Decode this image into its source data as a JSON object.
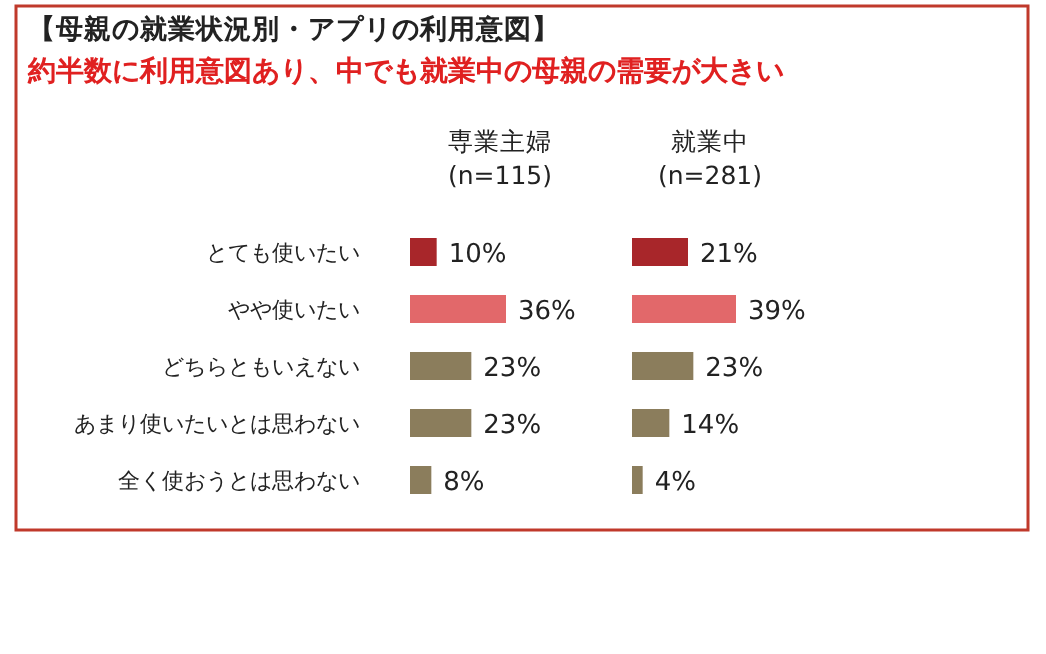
{
  "chart_data": [
    {
      "type": "other",
      "title": "【母親の就業状況別・アプリの利用意図】",
      "subtitle": "約半数に利用意図あり、中でも就業中の母親の需要が大きい"
    },
    {
      "type": "bar",
      "orientation": "horizontal",
      "title": "専業主婦\n(n=115)",
      "categories": [
        "とても使いたい",
        "やや使いたい",
        "どちらともいえない",
        "あまり使いたいとは思わない",
        "全く使おうとは思わない"
      ],
      "values": [
        10,
        36,
        23,
        23,
        8
      ],
      "value_labels": [
        "10%",
        "36%",
        "23%",
        "23%",
        "8%"
      ],
      "colors": [
        "#a8262a",
        "#e2686a",
        "#8b7d5c",
        "#8b7d5c",
        "#8b7d5c"
      ]
    },
    {
      "type": "bar",
      "orientation": "horizontal",
      "title": "就業中\n(n=281)",
      "categories": [
        null,
        null,
        null,
        null,
        null
      ],
      "values": [
        21,
        39,
        23,
        14,
        4
      ],
      "value_labels": [
        "21%",
        "39%",
        "23%",
        "14%",
        "4%"
      ],
      "colors": [
        "#a8262a",
        "#e2686a",
        "#8b7d5c",
        "#8b7d5c",
        "#8b7d5c"
      ]
    }
  ]
}
